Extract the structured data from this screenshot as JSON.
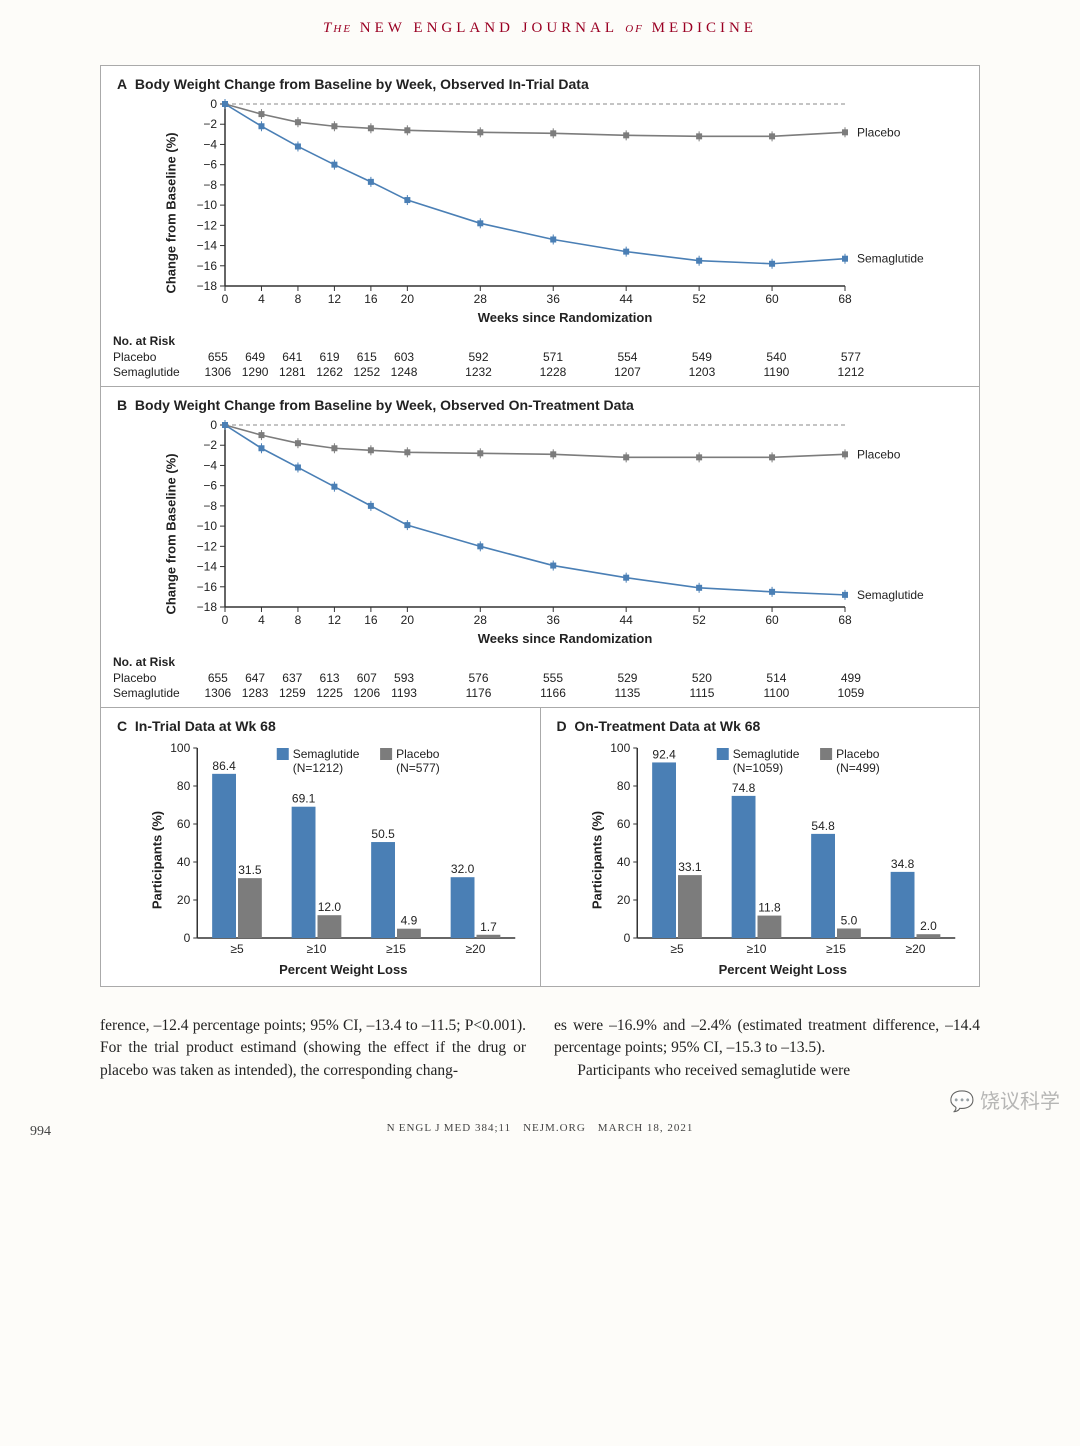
{
  "header": {
    "prefix": "The",
    "main": "NEW ENGLAND JOURNAL",
    "suffix_ital": "of",
    "suffix": "MEDICINE"
  },
  "colors": {
    "semaglutide": "#4a7fb5",
    "placebo": "#7c7c7c",
    "axis": "#333333",
    "grid_dash": "#888888",
    "bg": "#ffffff"
  },
  "panelA": {
    "tag": "A",
    "title": "Body Weight Change from Baseline by Week, Observed In-Trial Data",
    "y_label": "Change from Baseline (%)",
    "x_label": "Weeks since Randomization",
    "x_ticks": [
      0,
      4,
      8,
      12,
      16,
      20,
      28,
      36,
      44,
      52,
      60,
      68
    ],
    "y_ticks": [
      0,
      -2,
      -4,
      -6,
      -8,
      -10,
      -12,
      -14,
      -16,
      -18
    ],
    "ylim": [
      -18,
      0
    ],
    "series": {
      "placebo": {
        "label": "Placebo",
        "x": [
          0,
          4,
          8,
          12,
          16,
          20,
          28,
          36,
          44,
          52,
          60,
          68
        ],
        "y": [
          0,
          -1.0,
          -1.8,
          -2.2,
          -2.4,
          -2.6,
          -2.8,
          -2.9,
          -3.1,
          -3.2,
          -3.2,
          -2.8
        ]
      },
      "semaglutide": {
        "label": "Semaglutide",
        "x": [
          0,
          4,
          8,
          12,
          16,
          20,
          28,
          36,
          44,
          52,
          60,
          68
        ],
        "y": [
          0,
          -2.2,
          -4.2,
          -6.0,
          -7.7,
          -9.5,
          -11.8,
          -13.4,
          -14.6,
          -15.5,
          -15.8,
          -15.3
        ]
      }
    },
    "risk": {
      "title": "No. at Risk",
      "placebo_label": "Placebo",
      "semaglutide_label": "Semaglutide",
      "placebo": [
        "655",
        "649",
        "641",
        "619",
        "615",
        "603",
        "592",
        "571",
        "554",
        "549",
        "540",
        "577"
      ],
      "semaglutide": [
        "1306",
        "1290",
        "1281",
        "1262",
        "1252",
        "1248",
        "1232",
        "1228",
        "1207",
        "1203",
        "1190",
        "1212"
      ]
    }
  },
  "panelB": {
    "tag": "B",
    "title": "Body Weight Change from Baseline by Week, Observed On-Treatment Data",
    "y_label": "Change from Baseline (%)",
    "x_label": "Weeks since Randomization",
    "x_ticks": [
      0,
      4,
      8,
      12,
      16,
      20,
      28,
      36,
      44,
      52,
      60,
      68
    ],
    "y_ticks": [
      0,
      -2,
      -4,
      -6,
      -8,
      -10,
      -12,
      -14,
      -16,
      -18
    ],
    "ylim": [
      -18,
      0
    ],
    "series": {
      "placebo": {
        "label": "Placebo",
        "x": [
          0,
          4,
          8,
          12,
          16,
          20,
          28,
          36,
          44,
          52,
          60,
          68
        ],
        "y": [
          0,
          -1.0,
          -1.8,
          -2.3,
          -2.5,
          -2.7,
          -2.8,
          -2.9,
          -3.2,
          -3.2,
          -3.2,
          -2.9
        ]
      },
      "semaglutide": {
        "label": "Semaglutide",
        "x": [
          0,
          4,
          8,
          12,
          16,
          20,
          28,
          36,
          44,
          52,
          60,
          68
        ],
        "y": [
          0,
          -2.3,
          -4.2,
          -6.1,
          -8.0,
          -9.9,
          -12.0,
          -13.9,
          -15.1,
          -16.1,
          -16.5,
          -16.8
        ]
      }
    },
    "risk": {
      "title": "No. at Risk",
      "placebo_label": "Placebo",
      "semaglutide_label": "Semaglutide",
      "placebo": [
        "655",
        "647",
        "637",
        "613",
        "607",
        "593",
        "576",
        "555",
        "529",
        "520",
        "514",
        "499"
      ],
      "semaglutide": [
        "1306",
        "1283",
        "1259",
        "1225",
        "1206",
        "1193",
        "1176",
        "1166",
        "1135",
        "1115",
        "1100",
        "1059"
      ]
    }
  },
  "panelC": {
    "tag": "C",
    "title": "In-Trial Data at Wk 68",
    "y_label": "Participants (%)",
    "x_label": "Percent Weight Loss",
    "legend": {
      "sem": "Semaglutide",
      "sem_n": "(N=1212)",
      "pla": "Placebo",
      "pla_n": "(N=577)"
    },
    "categories": [
      "≥5",
      "≥10",
      "≥15",
      "≥20"
    ],
    "sem_values": [
      86.4,
      69.1,
      50.5,
      32.0
    ],
    "pla_values": [
      31.5,
      12.0,
      4.9,
      1.7
    ],
    "y_ticks": [
      0,
      20,
      40,
      60,
      80,
      100
    ],
    "ylim": [
      0,
      100
    ]
  },
  "panelD": {
    "tag": "D",
    "title": "On-Treatment Data at Wk 68",
    "y_label": "Participants (%)",
    "x_label": "Percent Weight Loss",
    "legend": {
      "sem": "Semaglutide",
      "sem_n": "(N=1059)",
      "pla": "Placebo",
      "pla_n": "(N=499)"
    },
    "categories": [
      "≥5",
      "≥10",
      "≥15",
      "≥20"
    ],
    "sem_values": [
      92.4,
      74.8,
      54.8,
      34.8
    ],
    "pla_values": [
      33.1,
      11.8,
      5.0,
      2.0
    ],
    "y_ticks": [
      0,
      20,
      40,
      60,
      80,
      100
    ],
    "ylim": [
      0,
      100
    ]
  },
  "body": {
    "col1": "ference, –12.4 percentage points; 95% CI, –13.4 to –11.5; P<0.001). For the trial product estimand (showing the effect if the drug or placebo was taken as intended), the corresponding chang-",
    "col2": "es were –16.9% and –2.4% (estimated treatment difference, –14.4 percentage points; 95% CI, –15.3 to –13.5).",
    "col2_p2": "Participants who received semaglutide were"
  },
  "footer": {
    "text": "N ENGL J MED 384;11 NEJM.ORG MARCH 18, 2021",
    "page": "994"
  },
  "watermark": "饶议科学"
}
